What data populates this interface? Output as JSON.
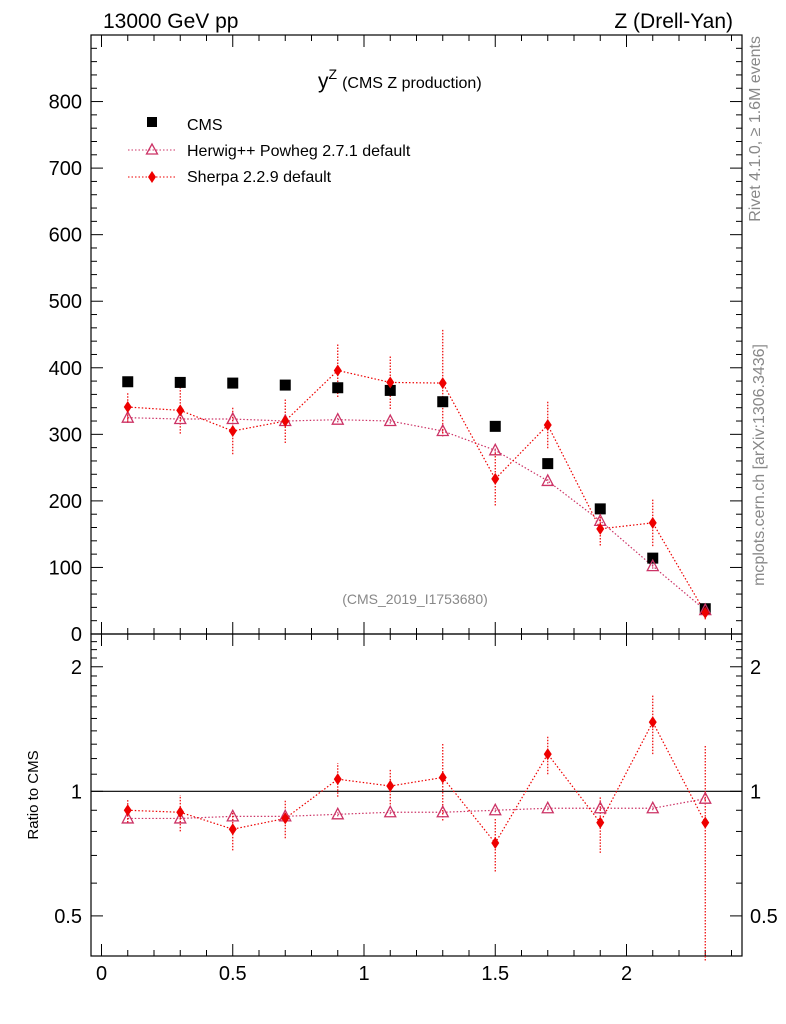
{
  "header": {
    "left": "13000 GeV pp",
    "right": "Z (Drell-Yan)"
  },
  "side_text": {
    "rivet": "Rivet 4.1.0, ≥ 1.6M events",
    "mcplots": "mcplots.cern.ch [arXiv:1306.3436]"
  },
  "chart_data": {
    "type": "scatter",
    "title_main": "y",
    "title_sup": "Z",
    "title_rest": "(CMS Z production)",
    "analysis_id": "(CMS_2019_I1753680)",
    "ratio_ylabel": "Ratio to CMS",
    "xlim": [
      -0.04,
      2.44
    ],
    "ylim": [
      0,
      900
    ],
    "ratio_ylim": [
      0.4,
      2.4
    ],
    "x_ticks": [
      "0",
      "0.5",
      "1",
      "1.5",
      "2"
    ],
    "x_tick_values": [
      0,
      0.5,
      1,
      1.5,
      2
    ],
    "y_ticks": [
      "0",
      "100",
      "200",
      "300",
      "400",
      "500",
      "600",
      "700",
      "800"
    ],
    "y_tick_values": [
      0,
      100,
      200,
      300,
      400,
      500,
      600,
      700,
      800
    ],
    "ratio_ticks": [
      "0.5",
      "1",
      "2"
    ],
    "ratio_tick_values": [
      0.5,
      1,
      2
    ],
    "x": [
      0.1,
      0.3,
      0.5,
      0.7,
      0.9,
      1.1,
      1.3,
      1.5,
      1.7,
      1.9,
      2.1,
      2.3
    ],
    "series": [
      {
        "name": "CMS",
        "color": "#000000",
        "marker": "square",
        "values": [
          379,
          378,
          377,
          374,
          370,
          366,
          349,
          312,
          256,
          188,
          114,
          38
        ]
      },
      {
        "name": "Herwig++ Powheg 2.7.1 default",
        "color": "#cc3366",
        "marker": "triangle",
        "values": [
          325,
          323,
          323,
          320,
          322,
          320,
          305,
          276,
          230,
          170,
          102,
          36
        ],
        "errors": [
          8,
          8,
          8,
          8,
          4,
          4,
          4,
          4,
          4,
          4,
          4,
          4
        ],
        "ratio": [
          0.86,
          0.86,
          0.87,
          0.87,
          0.88,
          0.89,
          0.89,
          0.9,
          0.91,
          0.91,
          0.91,
          0.96
        ],
        "ratio_errors": [
          0.02,
          0.02,
          0.02,
          0.02,
          0.01,
          0.01,
          0.01,
          0.01,
          0.01,
          0.01,
          0.01,
          0.01
        ]
      },
      {
        "name": "Sherpa 2.2.9 default",
        "color": "#ee0000",
        "marker": "diamond",
        "values": [
          341,
          336,
          305,
          320,
          396,
          378,
          377,
          233,
          314,
          158,
          167,
          32
        ],
        "errors": [
          22,
          35,
          35,
          33,
          40,
          40,
          80,
          40,
          35,
          25,
          35,
          10
        ],
        "ratio": [
          0.9,
          0.89,
          0.81,
          0.86,
          1.07,
          1.03,
          1.08,
          0.75,
          1.23,
          0.84,
          1.47,
          0.84
        ],
        "ratio_errors": [
          0.06,
          0.09,
          0.09,
          0.09,
          0.1,
          0.1,
          0.23,
          0.11,
          0.13,
          0.13,
          0.24,
          0.45
        ]
      }
    ],
    "legend": [
      "CMS",
      "Herwig++ Powheg 2.7.1 default",
      "Sherpa 2.2.9 default"
    ],
    "legend_position": "top-left",
    "grid": false
  }
}
